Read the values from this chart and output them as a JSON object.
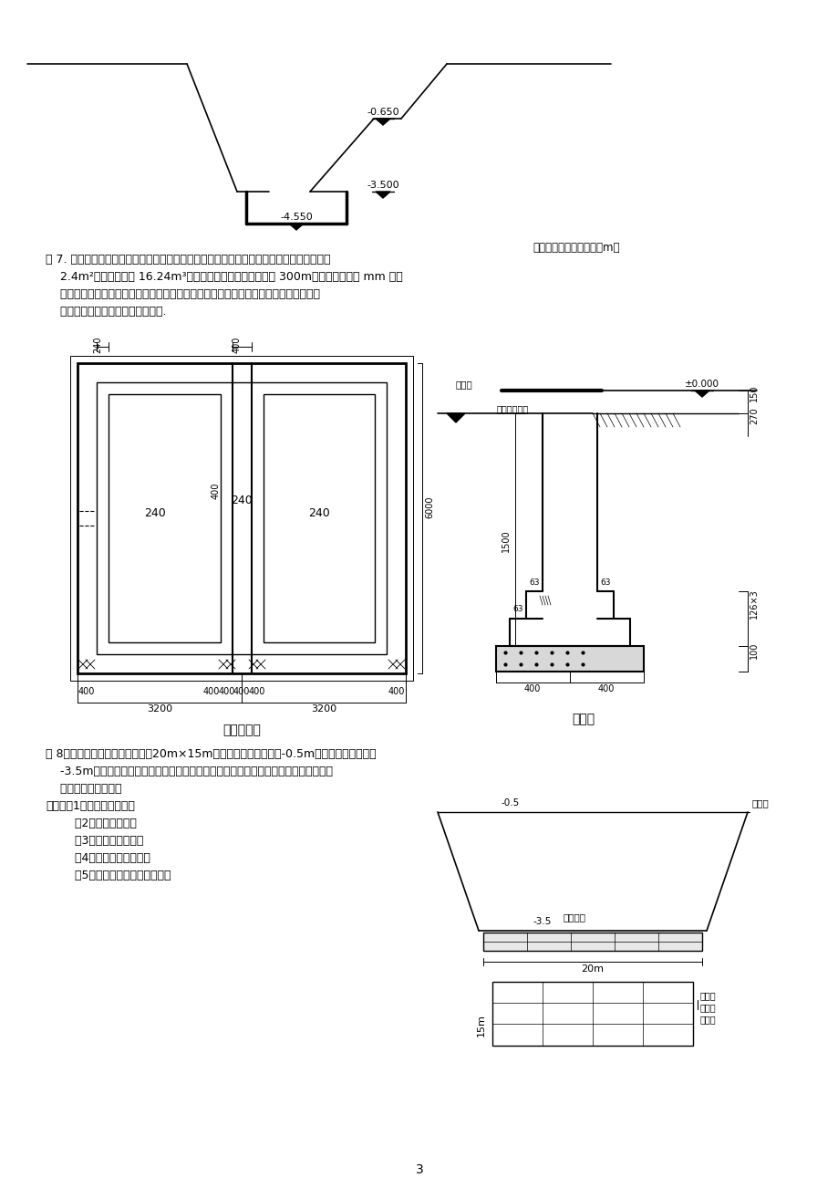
{
  "page_number": "3",
  "bg_color": "#ffffff",
  "top_caption": "满堂基础示意图（单位：m）",
  "ex7_lines": [
    "例 7. 某建筑物基础的平面图、剖面图如图所示。已知室外设计地坪以下各工程量：垫层体积",
    "    2.4m²，砖基础体积 16.24m³。人工装土翻斗车运土，运距 300m。图中尺寸均以 mm 计。",
    "    二类土。试求该建筑物平整场地、挖土方、回填土、房心回填土、余土运输工程量（不",
    "    考虑挖填土方的运输），清单计价."
  ],
  "ex8_lines": [
    "例 8、某工程设计采用伐板基础（20m×15m）室外设计地坪标高为-0.5m，伐板基础底标高为",
    "    -3.5m，根据地质勘测报告，确定该土质为普通土。施工时，采用反铲挖掘机挖土，一",
    "    侧施工，边挖边退。"
  ],
  "req_lines": [
    "要求：（1）确定放坡系数。",
    "        （2）确定工作面。",
    "        （3）确定挖土深度。",
    "        （4）计算总挖土体积。",
    "        （5）计算该工程挖土直接费。"
  ]
}
